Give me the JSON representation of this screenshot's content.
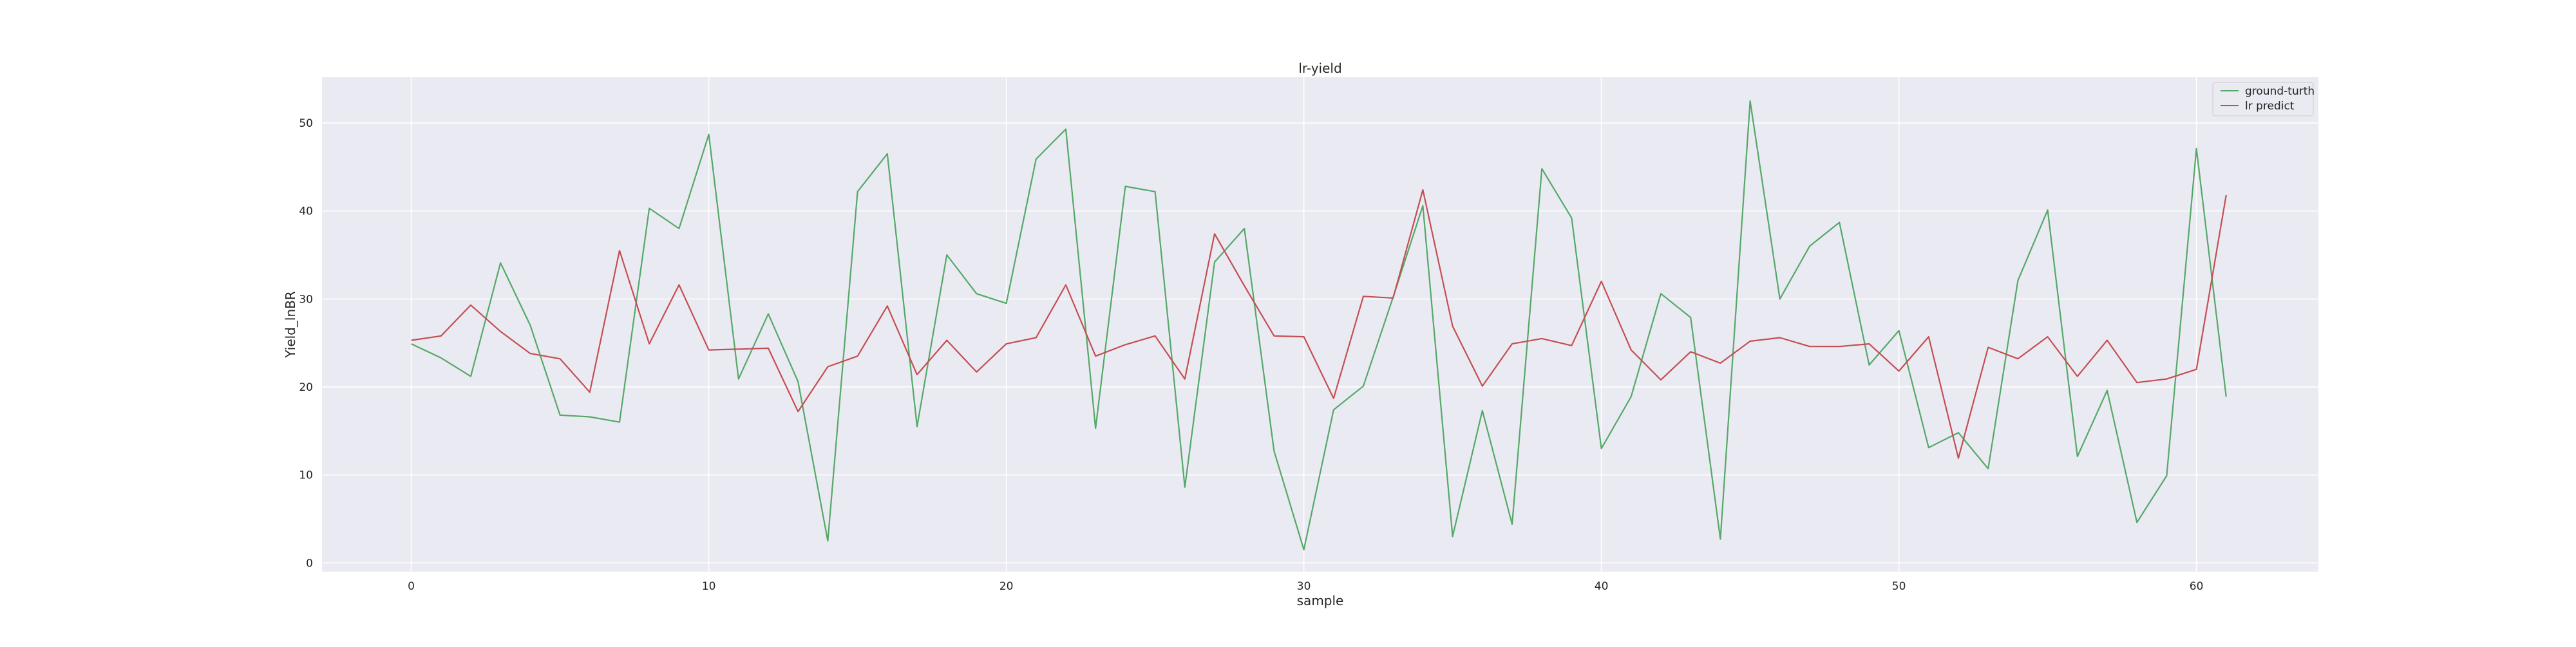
{
  "chart_data": {
    "type": "line",
    "title": "lr-yield",
    "xlabel": "sample",
    "ylabel": "Yield_lnBR",
    "xlim": [
      -3,
      64.1
    ],
    "ylim": [
      -1,
      55.2
    ],
    "xticks": [
      0,
      10,
      20,
      30,
      40,
      50,
      60
    ],
    "yticks": [
      0,
      10,
      20,
      30,
      40,
      50
    ],
    "grid": true,
    "legend_position": "top-right",
    "x": [
      0,
      1,
      2,
      3,
      4,
      5,
      6,
      7,
      8,
      9,
      10,
      11,
      12,
      13,
      14,
      15,
      16,
      17,
      18,
      19,
      20,
      21,
      22,
      23,
      24,
      25,
      26,
      27,
      28,
      29,
      30,
      31,
      32,
      33,
      34,
      35,
      36,
      37,
      38,
      39,
      40,
      41,
      42,
      43,
      44,
      45,
      46,
      47,
      48,
      49,
      50,
      51,
      52,
      53,
      54,
      55,
      56,
      57,
      58,
      59,
      60,
      61
    ],
    "series": [
      {
        "name": "ground-turth",
        "color": "#55a868",
        "values": [
          24.9,
          23.3,
          21.2,
          34.1,
          27.0,
          16.8,
          16.6,
          16.0,
          40.3,
          38.0,
          48.7,
          20.9,
          28.3,
          20.6,
          2.5,
          42.2,
          46.5,
          15.5,
          35.0,
          30.6,
          29.5,
          45.9,
          49.3,
          15.3,
          42.8,
          42.2,
          8.6,
          34.2,
          38.0,
          12.7,
          1.5,
          17.4,
          20.1,
          30.2,
          40.6,
          3.0,
          17.3,
          4.4,
          44.8,
          39.2,
          13.0,
          18.9,
          30.6,
          27.9,
          2.7,
          52.5,
          30.0,
          36.0,
          38.7,
          22.5,
          26.4,
          13.1,
          14.8,
          10.7,
          32.1,
          40.1,
          12.1,
          19.6,
          4.6,
          9.9,
          47.1,
          18.9
        ]
      },
      {
        "name": "lr predict",
        "color": "#c44e52",
        "values": [
          25.3,
          25.8,
          29.3,
          26.3,
          23.8,
          23.2,
          19.4,
          35.5,
          24.9,
          31.6,
          24.2,
          24.3,
          24.4,
          17.2,
          22.3,
          23.5,
          29.2,
          21.4,
          25.3,
          21.7,
          24.9,
          25.6,
          31.6,
          23.5,
          24.8,
          25.8,
          20.9,
          37.4,
          31.5,
          25.8,
          25.7,
          18.7,
          30.3,
          30.1,
          42.4,
          26.9,
          20.1,
          24.9,
          25.5,
          24.7,
          32.0,
          24.2,
          20.8,
          24.0,
          22.7,
          25.2,
          25.6,
          24.6,
          24.6,
          24.9,
          21.8,
          25.7,
          11.9,
          24.5,
          23.2,
          25.7,
          21.2,
          25.3,
          20.5,
          20.9,
          22.0,
          41.8
        ]
      }
    ]
  }
}
